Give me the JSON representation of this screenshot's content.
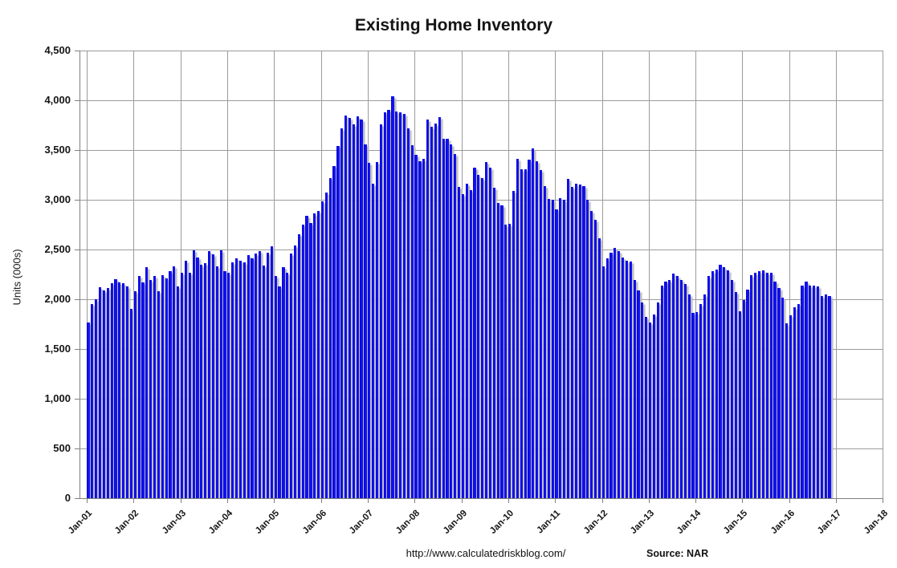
{
  "title": "Existing Home Inventory",
  "footer": {
    "url": "http://www.calculatedriskblog.com/",
    "source_label": "Source: NAR"
  },
  "colors": {
    "bar": "#1414f5",
    "bar_edge": "#0202c6",
    "grid": "#9b9b9b",
    "axis": "#808080",
    "shadow": "#bcbcbc",
    "text": "#151515"
  },
  "chart_data": {
    "type": "bar",
    "title": "Existing Home Inventory",
    "xlabel": "",
    "ylabel": "Units (000s)",
    "ylim": [
      0,
      4500
    ],
    "y_tick_step": 500,
    "y_tick_labels": [
      "0",
      "500",
      "1,000",
      "1,500",
      "2,000",
      "2,500",
      "3,000",
      "3,500",
      "4,000",
      "4,500"
    ],
    "x_tick_labels": [
      "Jan-01",
      "Jan-02",
      "Jan-03",
      "Jan-04",
      "Jan-05",
      "Jan-06",
      "Jan-07",
      "Jan-08",
      "Jan-09",
      "Jan-10",
      "Jan-11",
      "Jan-12",
      "Jan-13",
      "Jan-14",
      "Jan-15",
      "Jan-16",
      "Jan-17",
      "Jan-18"
    ],
    "frequency": "monthly",
    "start_month": "Jan-2001",
    "end_month": "Nov-2016",
    "grid": true,
    "legend": false,
    "series": [
      {
        "name": "Existing home inventory (thousands of units)",
        "values": [
          1770,
          1950,
          2000,
          2120,
          2090,
          2110,
          2160,
          2200,
          2170,
          2160,
          2130,
          1900,
          2080,
          2230,
          2170,
          2320,
          2190,
          2230,
          2080,
          2240,
          2210,
          2280,
          2330,
          2130,
          2270,
          2390,
          2270,
          2490,
          2420,
          2350,
          2360,
          2480,
          2450,
          2330,
          2490,
          2280,
          2270,
          2370,
          2410,
          2390,
          2370,
          2440,
          2410,
          2460,
          2480,
          2340,
          2470,
          2530,
          2230,
          2130,
          2320,
          2270,
          2460,
          2540,
          2650,
          2750,
          2840,
          2770,
          2860,
          2890,
          2980,
          3070,
          3220,
          3340,
          3540,
          3720,
          3850,
          3820,
          3760,
          3840,
          3810,
          3560,
          3370,
          3160,
          3380,
          3760,
          3880,
          3900,
          4040,
          3890,
          3880,
          3860,
          3720,
          3550,
          3450,
          3390,
          3410,
          3810,
          3730,
          3770,
          3830,
          3610,
          3610,
          3560,
          3460,
          3130,
          3060,
          3160,
          3100,
          3320,
          3250,
          3220,
          3380,
          3320,
          3120,
          2970,
          2940,
          2750,
          2760,
          3090,
          3410,
          3310,
          3310,
          3400,
          3520,
          3390,
          3300,
          3140,
          3010,
          3000,
          2900,
          3020,
          3000,
          3210,
          3130,
          3160,
          3150,
          3140,
          3000,
          2890,
          2800,
          2610,
          2330,
          2410,
          2470,
          2520,
          2480,
          2420,
          2390,
          2380,
          2190,
          2090,
          1970,
          1820,
          1770,
          1850,
          1970,
          2140,
          2180,
          2190,
          2260,
          2230,
          2190,
          2150,
          2050,
          1860,
          1870,
          1950,
          2050,
          2230,
          2280,
          2300,
          2350,
          2320,
          2290,
          2190,
          2070,
          1880,
          1990,
          2100,
          2240,
          2270,
          2280,
          2290,
          2270,
          2270,
          2180,
          2110,
          2020,
          1760,
          1840,
          1920,
          1950,
          2140,
          2180,
          2140,
          2140,
          2130,
          2030,
          2050,
          2030
        ]
      }
    ]
  }
}
